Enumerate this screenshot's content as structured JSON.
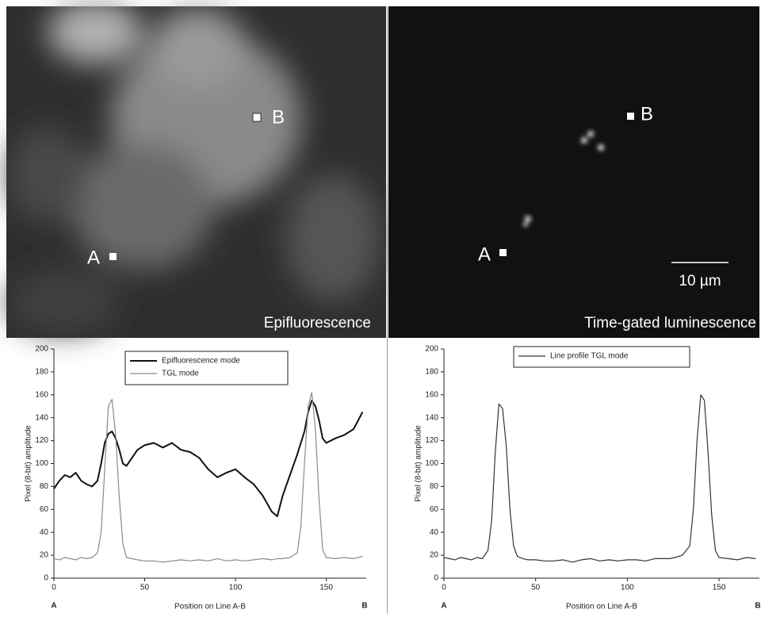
{
  "panels": [
    {
      "caption": "Epifluorescence",
      "point_a": "A",
      "point_b": "B"
    },
    {
      "caption": "Time-gated luminescence",
      "point_a": "A",
      "point_b": "B",
      "scale_bar": "10 µm"
    }
  ],
  "chart_data": [
    {
      "type": "line",
      "x_label": "Position on Line A-B",
      "y_label": "Pixel (8-bit) amplitude",
      "x_start_label": "A",
      "x_end_label": "B",
      "x": [
        0,
        3,
        6,
        9,
        12,
        15,
        18,
        21,
        24,
        26,
        28,
        30,
        32,
        34,
        36,
        38,
        40,
        43,
        46,
        50,
        55,
        60,
        65,
        70,
        75,
        80,
        85,
        90,
        95,
        100,
        105,
        110,
        115,
        120,
        123,
        126,
        130,
        134,
        136,
        138,
        140,
        142,
        144,
        146,
        148,
        150,
        155,
        160,
        165,
        170
      ],
      "series": [
        {
          "name": "Epifluorescence mode",
          "color": "#111111",
          "width": 2,
          "values": [
            78,
            85,
            90,
            88,
            92,
            85,
            82,
            80,
            85,
            100,
            118,
            126,
            128,
            122,
            112,
            100,
            98,
            105,
            112,
            116,
            118,
            114,
            118,
            112,
            110,
            105,
            95,
            88,
            92,
            95,
            88,
            82,
            72,
            58,
            54,
            72,
            90,
            108,
            118,
            128,
            145,
            155,
            150,
            138,
            122,
            118,
            122,
            125,
            130,
            145
          ]
        },
        {
          "name": "TGL mode",
          "color": "#8a8a8a",
          "width": 1.2,
          "values": [
            17,
            16,
            18,
            17,
            16,
            18,
            17,
            18,
            22,
            40,
            95,
            150,
            156,
            125,
            70,
            30,
            18,
            17,
            16,
            15,
            15,
            14,
            15,
            16,
            15,
            16,
            15,
            17,
            15,
            16,
            15,
            16,
            17,
            16,
            17,
            17,
            18,
            22,
            45,
            100,
            150,
            162,
            130,
            70,
            25,
            18,
            17,
            18,
            17,
            19
          ]
        }
      ],
      "xlim": [
        0,
        172
      ],
      "xticks": [
        0,
        50,
        100,
        150
      ],
      "ylim": [
        0,
        200
      ],
      "yticks": [
        0,
        20,
        40,
        60,
        80,
        100,
        120,
        140,
        160,
        180,
        200
      ]
    },
    {
      "type": "line",
      "x_label": "Position on Line A-B",
      "y_label": "Pixel (8-bit) amplitude",
      "x_start_label": "A",
      "x_end_label": "B",
      "x": [
        0,
        3,
        6,
        9,
        12,
        15,
        18,
        21,
        24,
        26,
        28,
        30,
        32,
        34,
        36,
        38,
        40,
        43,
        46,
        50,
        55,
        60,
        65,
        70,
        75,
        80,
        85,
        90,
        95,
        100,
        105,
        110,
        115,
        120,
        123,
        126,
        130,
        134,
        136,
        138,
        140,
        142,
        144,
        146,
        148,
        150,
        155,
        160,
        165,
        170
      ],
      "series": [
        {
          "name": "Line profile TGL mode",
          "color": "#333333",
          "width": 1.2,
          "values": [
            18,
            17,
            16,
            18,
            17,
            16,
            18,
            17,
            24,
            50,
            110,
            152,
            148,
            115,
            60,
            28,
            19,
            17,
            16,
            16,
            15,
            15,
            16,
            14,
            16,
            17,
            15,
            16,
            15,
            16,
            16,
            15,
            17,
            17,
            17,
            18,
            20,
            28,
            60,
            120,
            160,
            155,
            110,
            55,
            24,
            18,
            17,
            16,
            18,
            17
          ]
        }
      ],
      "xlim": [
        0,
        172
      ],
      "xticks": [
        0,
        50,
        100,
        150
      ],
      "ylim": [
        0,
        200
      ],
      "yticks": [
        0,
        20,
        40,
        60,
        80,
        100,
        120,
        140,
        160,
        180,
        200
      ]
    }
  ]
}
